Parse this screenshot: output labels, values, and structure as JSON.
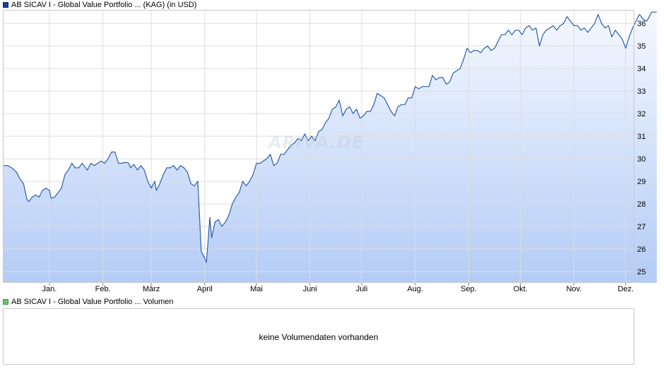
{
  "legend_price": "AB SICAV I - Global Value Portfolio ... (KAG) (in USD)",
  "legend_volume": "AB SICAV I - Global Value Portfolio ... Volumen",
  "volume_message": "keine Volumendaten vorhanden",
  "watermark": "ARIVA.DE",
  "colors": {
    "line": "#2a5db0",
    "fill_top": "#f4f8ff",
    "fill_bottom": "#b4ccf6",
    "grid": "#dddddd"
  },
  "chart_data": {
    "type": "area",
    "title": "",
    "xlabel": "",
    "ylabel": "",
    "ylim": [
      24.5,
      36.6
    ],
    "y_ticks": [
      25,
      26,
      27,
      28,
      29,
      30,
      31,
      32,
      33,
      34,
      35,
      36
    ],
    "x_tick_labels": [
      "Jan.",
      "Feb.",
      "März",
      "April",
      "Mai",
      "Juni",
      "Juli",
      "Aug.",
      "Sep.",
      "Okt.",
      "Nov.",
      "Dez."
    ],
    "x_tick_days": [
      15,
      46,
      74,
      105,
      135,
      166,
      196,
      227,
      258,
      288,
      319,
      349
    ],
    "x_range_days": [
      -12,
      354
    ],
    "grid": true,
    "legend": "top-left",
    "series": [
      {
        "name": "AB SICAV I - Global Value Portfolio ... (KAG) (in USD)",
        "points": [
          [
            -12,
            29.7
          ],
          [
            -9,
            29.7
          ],
          [
            -6,
            29.55
          ],
          [
            -4,
            29.4
          ],
          [
            -2,
            29.1
          ],
          [
            0,
            28.9
          ],
          [
            2,
            28.2
          ],
          [
            3,
            28.1
          ],
          [
            5,
            28.3
          ],
          [
            7,
            28.4
          ],
          [
            9,
            28.3
          ],
          [
            11,
            28.6
          ],
          [
            13,
            28.7
          ],
          [
            15,
            28.6
          ],
          [
            16,
            28.25
          ],
          [
            18,
            28.3
          ],
          [
            20,
            28.5
          ],
          [
            22,
            28.7
          ],
          [
            24,
            29.3
          ],
          [
            26,
            29.5
          ],
          [
            28,
            29.8
          ],
          [
            30,
            29.6
          ],
          [
            32,
            29.6
          ],
          [
            34,
            29.8
          ],
          [
            35,
            29.7
          ],
          [
            37,
            29.5
          ],
          [
            39,
            29.8
          ],
          [
            41,
            29.7
          ],
          [
            43,
            29.8
          ],
          [
            45,
            29.9
          ],
          [
            47,
            29.8
          ],
          [
            49,
            30.0
          ],
          [
            51,
            30.3
          ],
          [
            53,
            30.3
          ],
          [
            55,
            29.8
          ],
          [
            57,
            29.8
          ],
          [
            59,
            29.85
          ],
          [
            61,
            29.8
          ],
          [
            62,
            29.6
          ],
          [
            64,
            29.75
          ],
          [
            66,
            29.5
          ],
          [
            68,
            29.7
          ],
          [
            70,
            29.5
          ],
          [
            72,
            29.0
          ],
          [
            74,
            28.7
          ],
          [
            76,
            29.0
          ],
          [
            77,
            28.6
          ],
          [
            79,
            28.9
          ],
          [
            81,
            29.3
          ],
          [
            83,
            29.6
          ],
          [
            85,
            29.6
          ],
          [
            87,
            29.7
          ],
          [
            89,
            29.5
          ],
          [
            91,
            29.7
          ],
          [
            93,
            29.6
          ],
          [
            95,
            29.4
          ],
          [
            97,
            28.9
          ],
          [
            99,
            28.8
          ],
          [
            101,
            29.0
          ],
          [
            103,
            25.9
          ],
          [
            105,
            25.6
          ],
          [
            106,
            25.4
          ],
          [
            108,
            27.4
          ],
          [
            109,
            26.5
          ],
          [
            111,
            27.2
          ],
          [
            113,
            27.3
          ],
          [
            115,
            27.0
          ],
          [
            117,
            27.2
          ],
          [
            119,
            27.5
          ],
          [
            121,
            28.0
          ],
          [
            123,
            28.3
          ],
          [
            125,
            28.5
          ],
          [
            127,
            29.0
          ],
          [
            129,
            28.8
          ],
          [
            131,
            29.0
          ],
          [
            133,
            29.3
          ],
          [
            135,
            29.8
          ],
          [
            137,
            29.8
          ],
          [
            139,
            29.9
          ],
          [
            141,
            30.0
          ],
          [
            143,
            30.2
          ],
          [
            145,
            29.7
          ],
          [
            147,
            29.8
          ],
          [
            149,
            30.2
          ],
          [
            151,
            30.2
          ],
          [
            153,
            30.4
          ],
          [
            155,
            30.6
          ],
          [
            157,
            30.7
          ],
          [
            159,
            30.9
          ],
          [
            161,
            30.8
          ],
          [
            163,
            31.1
          ],
          [
            165,
            30.8
          ],
          [
            167,
            31.0
          ],
          [
            169,
            30.8
          ],
          [
            171,
            31.2
          ],
          [
            173,
            31.3
          ],
          [
            175,
            31.6
          ],
          [
            177,
            31.8
          ],
          [
            179,
            32.2
          ],
          [
            181,
            32.3
          ],
          [
            183,
            32.6
          ],
          [
            185,
            31.9
          ],
          [
            187,
            32.2
          ],
          [
            189,
            32.3
          ],
          [
            191,
            32.0
          ],
          [
            193,
            32.2
          ],
          [
            195,
            31.8
          ],
          [
            197,
            31.9
          ],
          [
            199,
            32.1
          ],
          [
            201,
            32.1
          ],
          [
            203,
            32.4
          ],
          [
            205,
            32.9
          ],
          [
            207,
            32.8
          ],
          [
            209,
            32.7
          ],
          [
            211,
            32.4
          ],
          [
            213,
            32.1
          ],
          [
            215,
            31.9
          ],
          [
            217,
            32.3
          ],
          [
            219,
            32.4
          ],
          [
            221,
            32.4
          ],
          [
            223,
            32.7
          ],
          [
            225,
            32.7
          ],
          [
            227,
            33.2
          ],
          [
            229,
            33.1
          ],
          [
            231,
            33.2
          ],
          [
            233,
            33.2
          ],
          [
            235,
            33.2
          ],
          [
            237,
            33.7
          ],
          [
            239,
            33.5
          ],
          [
            241,
            33.6
          ],
          [
            243,
            33.6
          ],
          [
            245,
            33.3
          ],
          [
            247,
            33.4
          ],
          [
            249,
            33.8
          ],
          [
            251,
            33.9
          ],
          [
            253,
            34.0
          ],
          [
            255,
            34.4
          ],
          [
            257,
            34.9
          ],
          [
            259,
            34.7
          ],
          [
            261,
            34.8
          ],
          [
            263,
            34.8
          ],
          [
            265,
            34.7
          ],
          [
            267,
            34.9
          ],
          [
            269,
            35.0
          ],
          [
            271,
            34.8
          ],
          [
            273,
            34.9
          ],
          [
            275,
            35.2
          ],
          [
            277,
            35.5
          ],
          [
            279,
            35.5
          ],
          [
            281,
            35.7
          ],
          [
            283,
            35.5
          ],
          [
            285,
            35.7
          ],
          [
            287,
            35.7
          ],
          [
            289,
            35.5
          ],
          [
            291,
            35.8
          ],
          [
            293,
            35.9
          ],
          [
            295,
            35.7
          ],
          [
            297,
            35.8
          ],
          [
            299,
            35.0
          ],
          [
            301,
            35.5
          ],
          [
            303,
            35.7
          ],
          [
            305,
            35.8
          ],
          [
            307,
            35.9
          ],
          [
            309,
            35.7
          ],
          [
            311,
            35.9
          ],
          [
            313,
            36.0
          ],
          [
            315,
            36.3
          ],
          [
            317,
            36.1
          ],
          [
            319,
            35.9
          ],
          [
            321,
            35.9
          ],
          [
            323,
            35.7
          ],
          [
            325,
            35.8
          ],
          [
            327,
            35.6
          ],
          [
            329,
            35.8
          ],
          [
            331,
            36.0
          ],
          [
            333,
            36.4
          ],
          [
            335,
            36.0
          ],
          [
            337,
            35.8
          ],
          [
            339,
            35.9
          ],
          [
            341,
            35.4
          ],
          [
            343,
            35.7
          ],
          [
            345,
            35.5
          ],
          [
            347,
            35.3
          ],
          [
            349,
            34.9
          ],
          [
            351,
            35.4
          ],
          [
            353,
            35.8
          ],
          [
            355,
            36.1
          ],
          [
            357,
            36.4
          ],
          [
            359,
            36.2
          ],
          [
            361,
            36.1
          ],
          [
            362,
            36.2
          ],
          [
            364,
            36.5
          ],
          [
            366,
            36.5
          ],
          [
            367,
            36.5
          ]
        ]
      }
    ]
  }
}
